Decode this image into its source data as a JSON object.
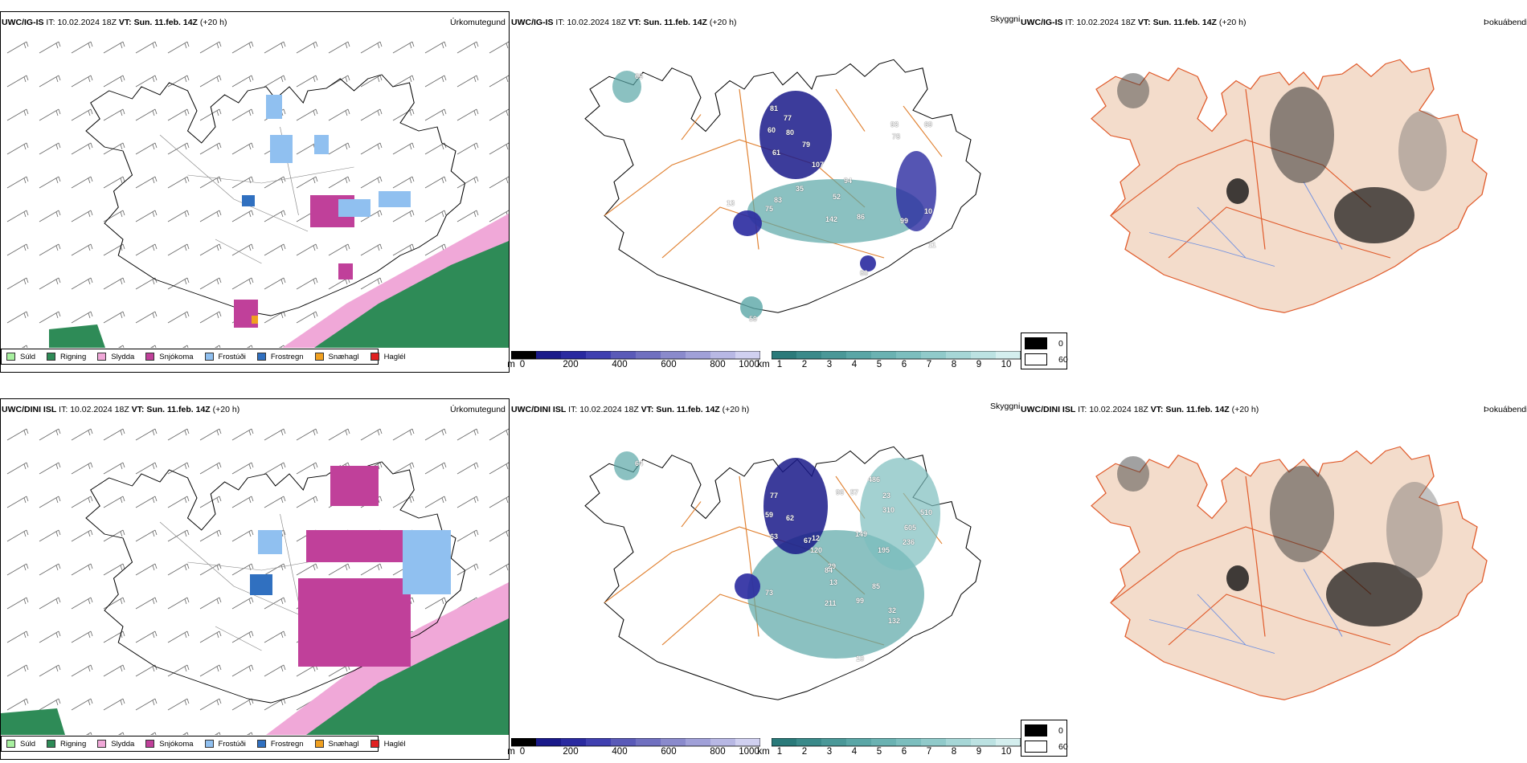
{
  "rows": [
    {
      "id": "top",
      "panels": [
        {
          "kind": "precip",
          "model": "UWC/IG-IS",
          "it_label": "IT:",
          "it_value": "10.02.2024 18Z",
          "vt_label": "VT:",
          "vt_value": "Sun. 11.feb. 14Z",
          "lead": "(+20 h)",
          "right_label": "Úrkomutegund"
        },
        {
          "kind": "vis",
          "model": "UWC/IG-IS",
          "it_label": "IT:",
          "it_value": "10.02.2024 18Z",
          "vt_label": "VT:",
          "vt_value": "Sun. 11.feb. 14Z",
          "lead": "(+20 h)",
          "right_label": "Skyggni"
        },
        {
          "kind": "fog",
          "model": "UWC/IG-IS",
          "it_label": "IT:",
          "it_value": "10.02.2024 18Z",
          "vt_label": "VT:",
          "vt_value": "Sun. 11.feb. 14Z",
          "lead": "(+20 h)",
          "right_label": "Þokuábendi"
        }
      ],
      "vis_labels": [
        "66",
        "81",
        "77",
        "60",
        "80",
        "79",
        "61",
        "107",
        "94",
        "83",
        "75",
        "35",
        "52",
        "142",
        "86",
        "99",
        "10",
        "11",
        "60",
        "59",
        "13",
        "93",
        "69",
        "78"
      ]
    },
    {
      "id": "bottom",
      "panels": [
        {
          "kind": "precip",
          "model": "UWC/DINI ISL",
          "it_label": "IT:",
          "it_value": "10.02.2024 18Z",
          "vt_label": "VT:",
          "vt_value": "Sun. 11.feb. 14Z",
          "lead": "(+20 h)",
          "right_label": "Úrkomutegund"
        },
        {
          "kind": "vis",
          "model": "UWC/DINI ISL",
          "it_label": "IT:",
          "it_value": "10.02.2024 18Z",
          "vt_label": "VT:",
          "vt_value": "Sun. 11.feb. 14Z",
          "lead": "(+20 h)",
          "right_label": "Skyggni"
        },
        {
          "kind": "fog",
          "model": "UWC/DINI ISL",
          "it_label": "IT:",
          "it_value": "10.02.2024 18Z",
          "vt_label": "VT:",
          "vt_value": "Sun. 11.feb. 14Z",
          "lead": "(+20 h)",
          "right_label": "Þokuábendi"
        }
      ],
      "vis_labels": [
        "64",
        "77",
        "96",
        "57",
        "59",
        "62",
        "63",
        "12",
        "120",
        "67",
        "29",
        "73",
        "13",
        "211",
        "99",
        "84",
        "85",
        "132",
        "10",
        "486",
        "23",
        "310",
        "605",
        "236",
        "510",
        "32",
        "195",
        "149"
      ]
    }
  ],
  "precip_legend": [
    {
      "label": "Súld",
      "color": "#a8f0a0"
    },
    {
      "label": "Rigning",
      "color": "#2e8b57"
    },
    {
      "label": "Slydda",
      "color": "#f0a8d8"
    },
    {
      "label": "Snjókoma",
      "color": "#c0409a"
    },
    {
      "label": "Frostúði",
      "color": "#90c0f0"
    },
    {
      "label": "Frostregn",
      "color": "#3070c0"
    },
    {
      "label": "Snæhagl",
      "color": "#f0a020"
    },
    {
      "label": "Haglél",
      "color": "#e02020"
    }
  ],
  "vis_scale_m": {
    "unit": "m",
    "ticks": [
      "0",
      "200",
      "400",
      "600",
      "800",
      "1000"
    ],
    "colors": [
      "#000000",
      "#1a1a8a",
      "#2a2aa0",
      "#4040b0",
      "#5a5ab8",
      "#7070c0",
      "#8a8acc",
      "#a0a0d8",
      "#b8b8e4",
      "#d0d0f0"
    ]
  },
  "vis_scale_km": {
    "unit": "km",
    "ticks": [
      "1",
      "2",
      "3",
      "4",
      "5",
      "6",
      "7",
      "8",
      "9",
      "10"
    ],
    "colors": [
      "#2a7a7a",
      "#3a8a8a",
      "#4a9898",
      "#5aa6a6",
      "#6ab2b2",
      "#7cbebe",
      "#90caca",
      "#a6d6d6",
      "#bce2e2",
      "#d4eeee"
    ]
  },
  "fog_legend": [
    {
      "value": "0",
      "color": "#000000"
    },
    {
      "value": "60",
      "color": "#ffffff"
    }
  ],
  "colors": {
    "land_fog": "#f3dccb",
    "road": "#e07020",
    "river": "#7090e0",
    "coast": "#000000",
    "sea_green": "#2e8b57",
    "sleet_pink": "#f0a8d8"
  }
}
